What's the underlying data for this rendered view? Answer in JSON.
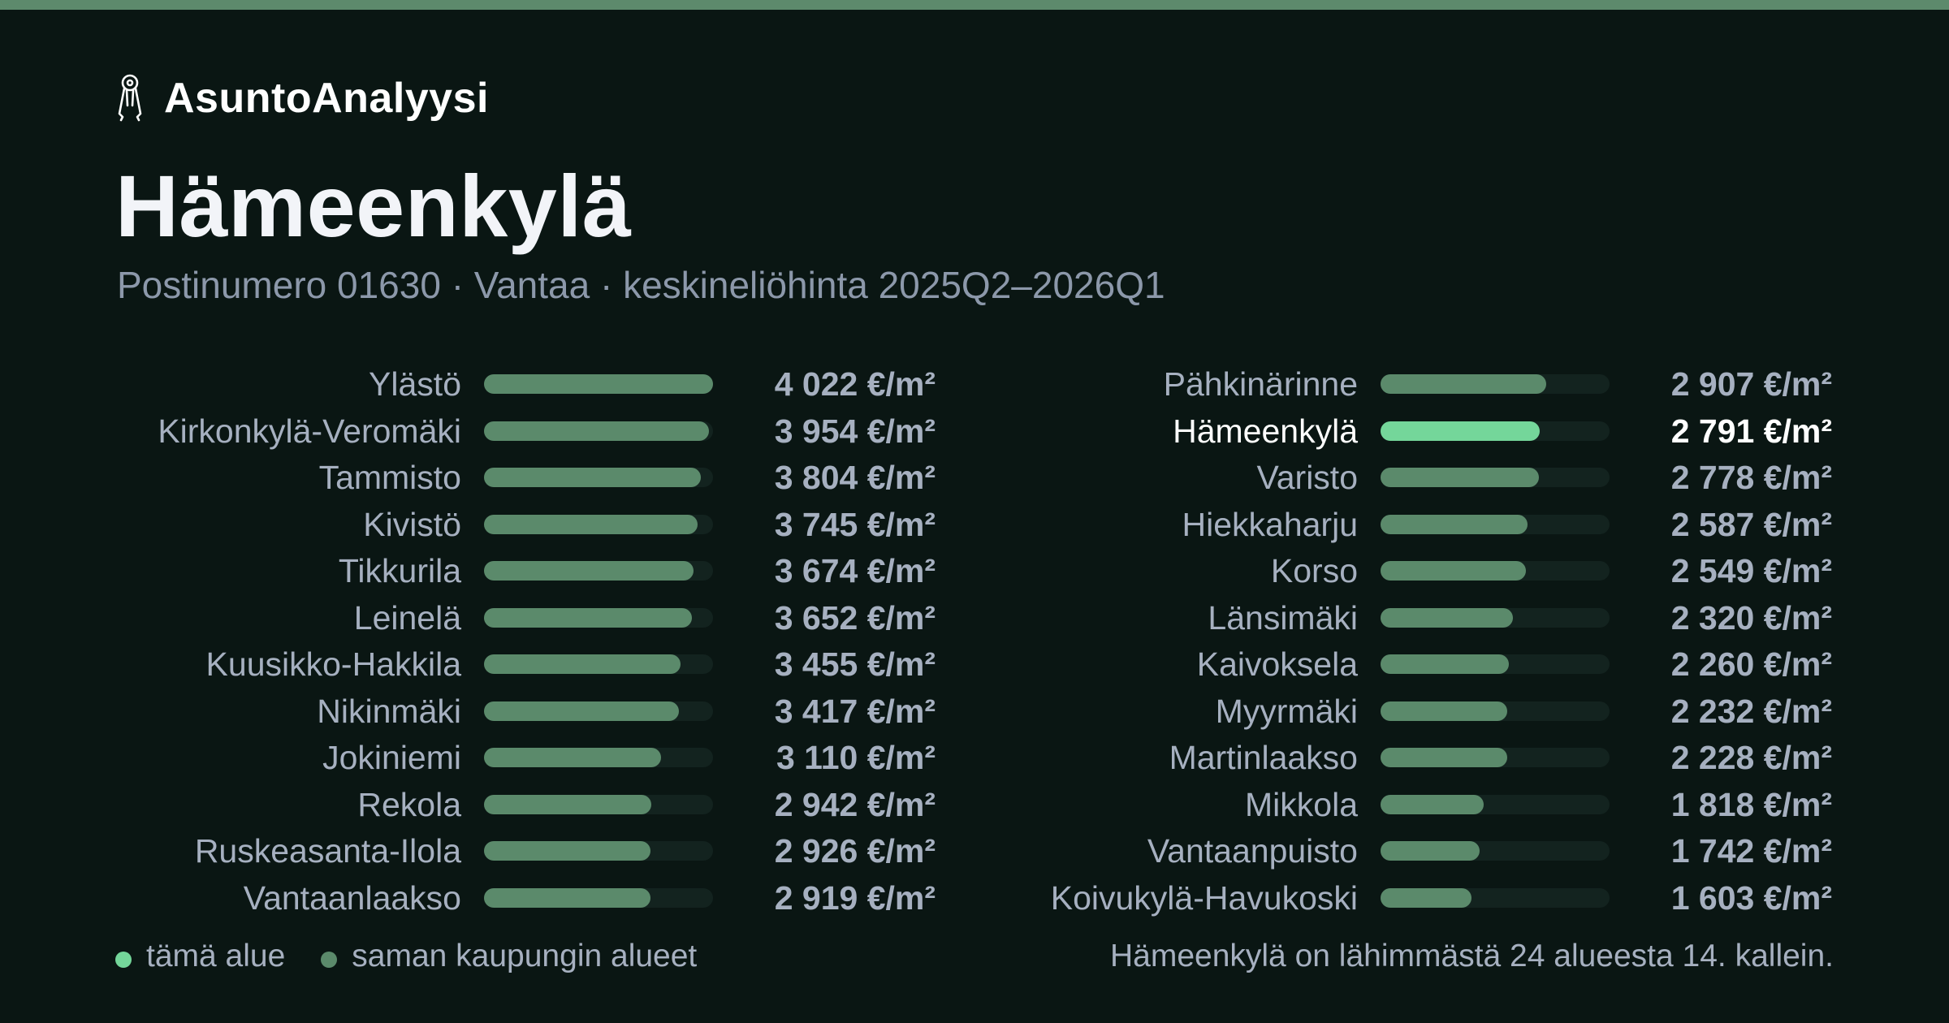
{
  "brand": {
    "name": "AsuntoAnalyysi",
    "icon": "keys-icon"
  },
  "header": {
    "title": "Hämeenkylä",
    "subtitle": "Postinumero 01630 · Vantaa · keskineliöhinta 2025Q2–2026Q1"
  },
  "colors": {
    "accent": "#74d69a",
    "bar": "#5b8a6b",
    "track": "#13231f",
    "background": "#0a1613",
    "topbar": "#5d8a6c"
  },
  "chart_data": {
    "type": "bar",
    "orientation": "horizontal",
    "unit": "€/m²",
    "max": 4022,
    "highlight": "Hämeenkylä",
    "categories": [
      "Ylästö",
      "Kirkonkylä-Veromäki",
      "Tammisto",
      "Kivistö",
      "Tikkurila",
      "Leinelä",
      "Kuusikko-Hakkila",
      "Nikinmäki",
      "Jokiniemi",
      "Rekola",
      "Ruskeasanta-Ilola",
      "Vantaanlaakso",
      "Pähkinärinne",
      "Hämeenkylä",
      "Varisto",
      "Hiekkaharju",
      "Korso",
      "Länsimäki",
      "Kaivoksela",
      "Myyrmäki",
      "Martinlaakso",
      "Mikkola",
      "Vantaanpuisto",
      "Koivukylä-Havukoski"
    ],
    "values": [
      4022,
      3954,
      3804,
      3745,
      3674,
      3652,
      3455,
      3417,
      3110,
      2942,
      2926,
      2919,
      2907,
      2791,
      2778,
      2587,
      2549,
      2320,
      2260,
      2232,
      2228,
      1818,
      1742,
      1603
    ],
    "value_labels": [
      "4 022 €/m²",
      "3 954 €/m²",
      "3 804 €/m²",
      "3 745 €/m²",
      "3 674 €/m²",
      "3 652 €/m²",
      "3 455 €/m²",
      "3 417 €/m²",
      "3 110 €/m²",
      "2 942 €/m²",
      "2 926 €/m²",
      "2 919 €/m²",
      "2 907 €/m²",
      "2 791 €/m²",
      "2 778 €/m²",
      "2 587 €/m²",
      "2 549 €/m²",
      "2 320 €/m²",
      "2 260 €/m²",
      "2 232 €/m²",
      "2 228 €/m²",
      "1 818 €/m²",
      "1 742 €/m²",
      "1 603 €/m²"
    ],
    "columns": 2,
    "rows_per_column": 12
  },
  "legend": {
    "this_area": "tämä alue",
    "same_city": "saman kaupungin alueet"
  },
  "note": "Hämeenkylä on lähimmästä 24 alueesta 14. kallein."
}
